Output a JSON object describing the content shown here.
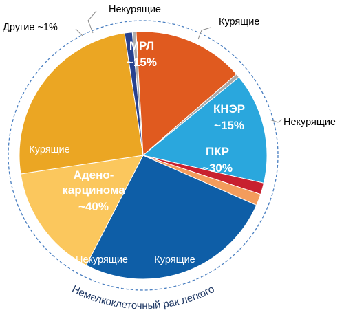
{
  "chart_data": {
    "type": "pie",
    "title": "",
    "ring_label": "Немелкоклеточный рак легкого",
    "groups": [
      {
        "name": "МРЛ",
        "share_label": "~15%"
      },
      {
        "name": "КНЭР",
        "share_label": "~15%"
      },
      {
        "name": "ПКР",
        "share_label": "~30%"
      },
      {
        "name": "Адено-карционома",
        "name_lines": [
          "Адено-",
          "карцинома"
        ],
        "share_label": "~40%"
      },
      {
        "name": "Другие",
        "share_label": "Другие ~1%"
      }
    ],
    "slices": [
      {
        "id": "mrl-nonsmokers",
        "label": "Некурящие",
        "value": 0.5,
        "color": "#aeaeae",
        "group": "МРЛ"
      },
      {
        "id": "mrl-smokers",
        "label": "",
        "value": 14.5,
        "color": "#e05a1f",
        "group": "МРЛ"
      },
      {
        "id": "kner-smokers",
        "label": "Курящие",
        "value": 0.5,
        "color": "#a9a9a9",
        "group": "КНЭР"
      },
      {
        "id": "kner-main",
        "label": "",
        "value": 14.5,
        "color": "#2aa7dd",
        "group": "КНЭР"
      },
      {
        "id": "kner-nonsmokers",
        "label": "Некурящие",
        "value": 1.5,
        "color": "#c8202f",
        "group": "КНЭР"
      },
      {
        "id": "pkr-light",
        "label": "",
        "value": 1.5,
        "color": "#f39c5c",
        "group": "ПКР"
      },
      {
        "id": "pkr-smokers",
        "label": "Курящие",
        "value": 26,
        "color": "#0e5ea7",
        "group": "ПКР"
      },
      {
        "id": "adeno-nonsmokers",
        "label": "Некурящие",
        "value": 15,
        "color": "#fbc75d",
        "group": "Адено-карцинома"
      },
      {
        "id": "adeno-smokers",
        "label": "Курящие",
        "value": 25,
        "color": "#eba623",
        "group": "Адено-карцинома"
      },
      {
        "id": "other",
        "label": "",
        "value": 1,
        "color": "#27418f",
        "group": "Другие"
      }
    ]
  }
}
